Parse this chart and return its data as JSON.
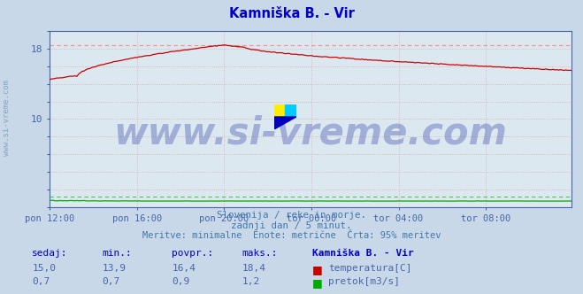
{
  "title": "Kamniška B. - Vir",
  "title_color": "#0000cc",
  "bg_color": "#c8d8e8",
  "plot_bg_color": "#dce8f0",
  "grid_color": "#ddaaaa",
  "grid_linestyle": "dotted",
  "x_tick_labels": [
    "pon 12:00",
    "pon 16:00",
    "pon 20:00",
    "tor 00:00",
    "tor 04:00",
    "tor 08:00"
  ],
  "x_tick_positions": [
    0,
    48,
    96,
    144,
    192,
    240
  ],
  "total_points": 288,
  "ylim": [
    0,
    20
  ],
  "y_ticks_show": [
    10,
    18
  ],
  "temp_color": "#cc0000",
  "flow_color": "#00aa00",
  "dashed_line_color": "#ff8888",
  "dashed_line_value": 18.4,
  "flow_dashed_color": "#44cc44",
  "flow_dashed_value": 1.2,
  "axis_color": "#4466aa",
  "watermark_text": "www.si-vreme.com",
  "watermark_color": "#3344aa",
  "watermark_alpha": 0.35,
  "watermark_fontsize": 30,
  "footer_line1": "Slovenija / reke in morje.",
  "footer_line2": "zadnji dan / 5 minut.",
  "footer_line3": "Meritve: minimalne  Enote: metrične  Črta: 95% meritev",
  "footer_color": "#4477aa",
  "table_header": [
    "sedaj:",
    "min.:",
    "povpr.:",
    "maks.:",
    "Kamniška B. - Vir"
  ],
  "table_color": "#0000cc",
  "table_bold": [
    false,
    false,
    false,
    false,
    true
  ],
  "row_temp": [
    "15,0",
    "13,9",
    "16,4",
    "18,4"
  ],
  "row_flow": [
    "0,7",
    "0,7",
    "0,9",
    "1,2"
  ],
  "legend_temp": "temperatura[C]",
  "legend_flow": "pretok[m3/s]",
  "sidebar_text": "www.si-vreme.com",
  "sidebar_color": "#7799bb",
  "logo_yellow": "#ffee00",
  "logo_cyan": "#00ccff",
  "logo_blue": "#0000bb"
}
